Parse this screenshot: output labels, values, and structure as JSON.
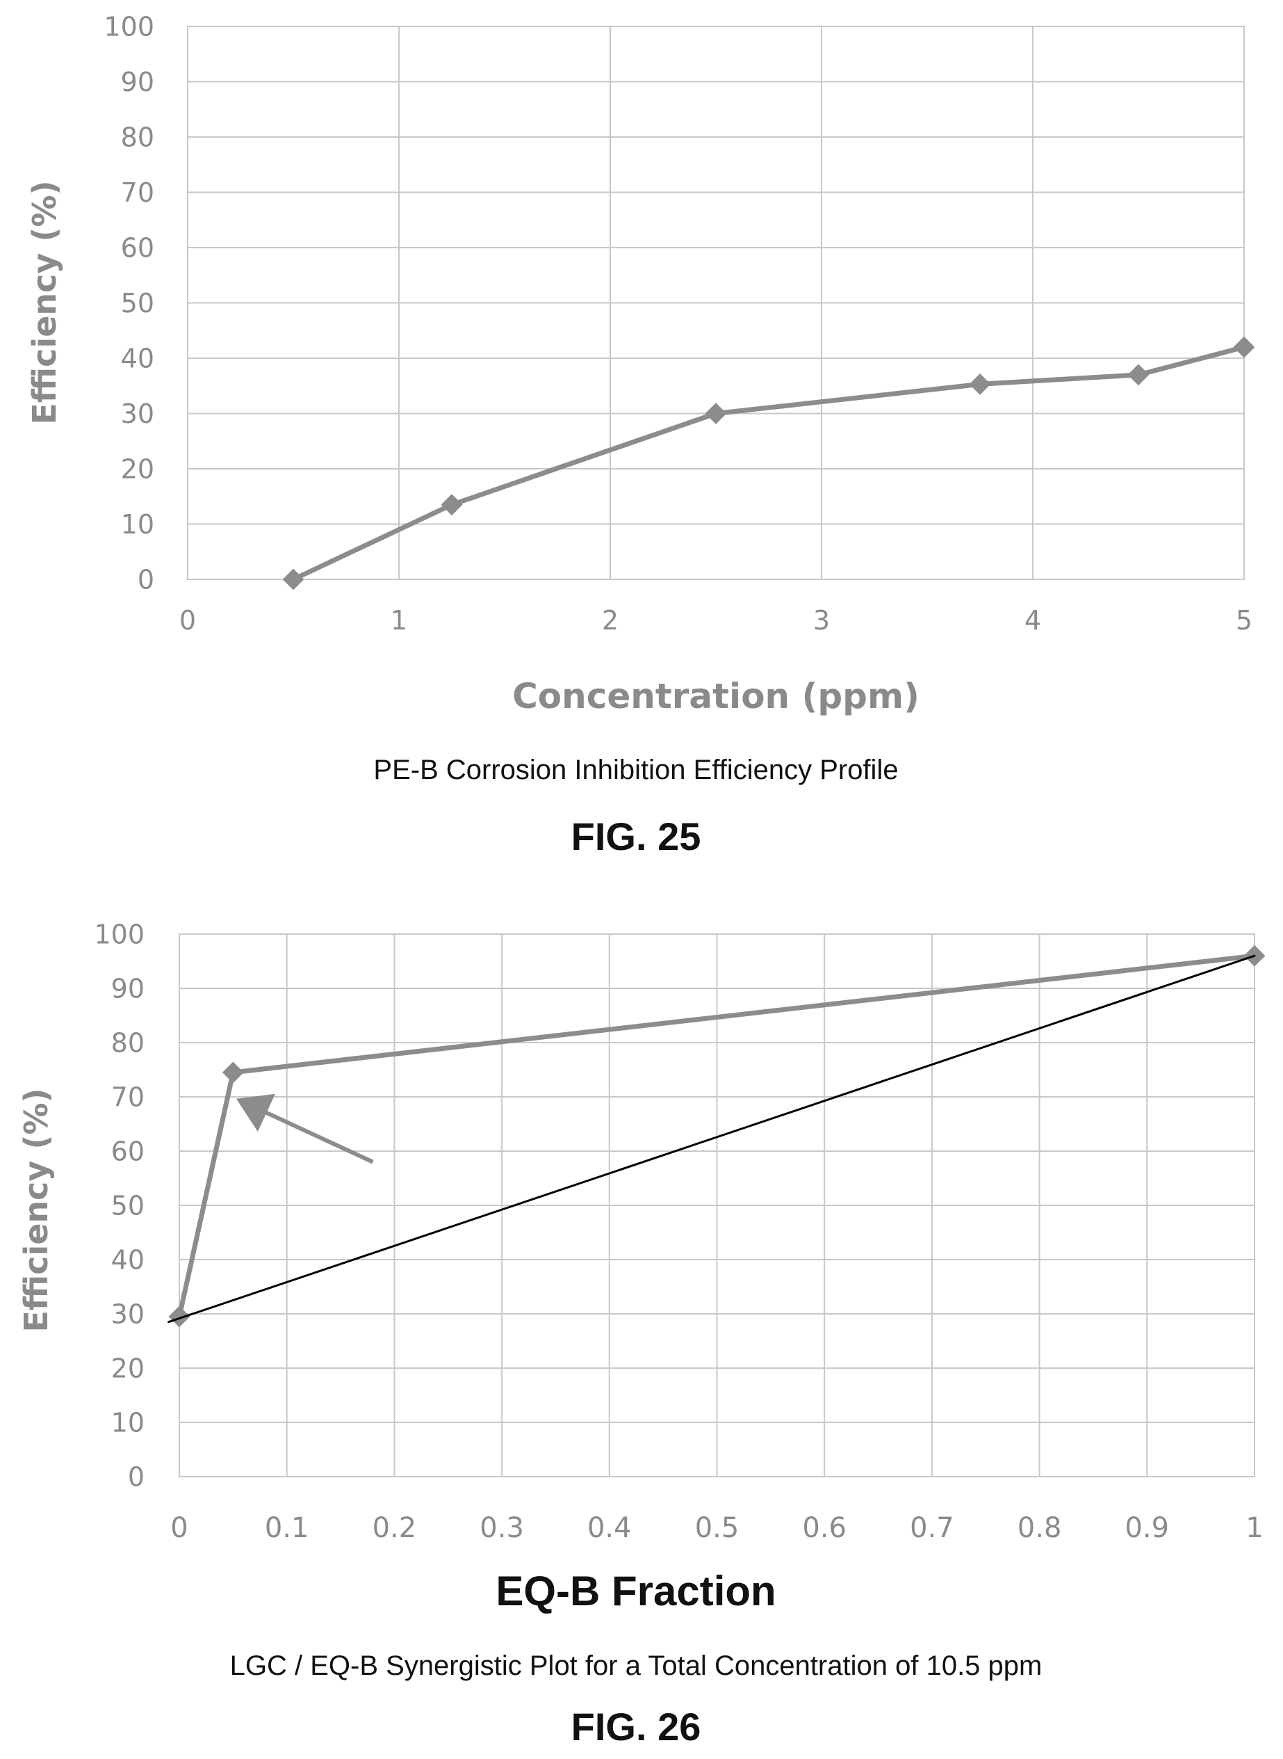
{
  "chart_data": [
    {
      "type": "line",
      "figure_label": "FIG. 25",
      "caption": "PE-B Corrosion Inhibition Efficiency Profile",
      "xlabel": "Concentration (ppm)",
      "ylabel": "Efficiency (%)",
      "xlim": [
        0,
        5
      ],
      "ylim": [
        0,
        100
      ],
      "x_ticks": [
        "0",
        "1",
        "2",
        "3",
        "4",
        "5"
      ],
      "y_ticks": [
        "0",
        "10",
        "20",
        "30",
        "40",
        "50",
        "60",
        "70",
        "80",
        "90",
        "100"
      ],
      "grid": true,
      "series": [
        {
          "color": "#8c8c8c",
          "marker": "diamond",
          "points": [
            {
              "x": 0.5,
              "y": 0
            },
            {
              "x": 1.25,
              "y": 13.5
            },
            {
              "x": 2.5,
              "y": 30
            },
            {
              "x": 3.75,
              "y": 35.3
            },
            {
              "x": 4.5,
              "y": 37
            },
            {
              "x": 5,
              "y": 42
            }
          ]
        }
      ]
    },
    {
      "type": "line",
      "figure_label": "FIG. 26",
      "caption": "LGC / EQ-B Synergistic Plot for a Total Concentration of 10.5 ppm",
      "xlabel": "EQ-B Fraction",
      "ylabel": "Efficiency (%)",
      "xlim": [
        0,
        1
      ],
      "ylim": [
        0,
        100
      ],
      "x_ticks": [
        "0",
        "0.1",
        "0.2",
        "0.3",
        "0.4",
        "0.5",
        "0.6",
        "0.7",
        "0.8",
        "0.9",
        "1"
      ],
      "y_ticks": [
        "0",
        "10",
        "20",
        "30",
        "40",
        "50",
        "60",
        "70",
        "80",
        "90",
        "100"
      ],
      "grid": true,
      "series": [
        {
          "color": "#8c8c8c",
          "marker": "diamond",
          "points": [
            {
              "x": 0,
              "y": 29.5
            },
            {
              "x": 0.05,
              "y": 74.5
            },
            {
              "x": 1,
              "y": 96
            }
          ]
        },
        {
          "color": "#000000",
          "marker": "none",
          "points": [
            {
              "x": -0.01,
              "y": 28.5
            },
            {
              "x": 1,
              "y": 96
            }
          ]
        }
      ],
      "annotations": [
        {
          "type": "arrow",
          "color": "#8c8c8c",
          "from": {
            "x": 0.18,
            "y": 58
          },
          "to": {
            "x": 0.06,
            "y": 69
          }
        }
      ]
    }
  ]
}
